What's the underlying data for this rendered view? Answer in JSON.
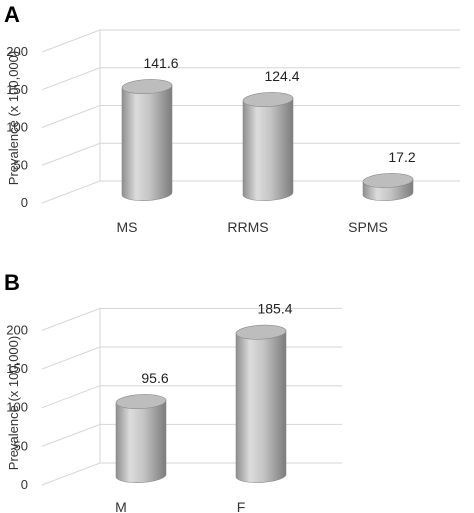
{
  "chart_data": [
    {
      "type": "bar",
      "panel": "A",
      "categories": [
        "MS",
        "RRMS",
        "SPMS"
      ],
      "values": [
        141.6,
        124.4,
        17.2
      ],
      "data_labels": [
        "141.6",
        "124.4",
        "17.2"
      ],
      "ylabel": "Prevalence (x 100,000)",
      "yticks": [
        "0",
        "50",
        "100",
        "150",
        "200"
      ],
      "ylim": [
        0,
        200
      ],
      "grid": true,
      "bar_style": "3d-cylinder",
      "bar_color": "#b5b5b5"
    },
    {
      "type": "bar",
      "panel": "B",
      "categories": [
        "M",
        "F"
      ],
      "values": [
        95.6,
        185.4
      ],
      "data_labels": [
        "95.6",
        "185.4"
      ],
      "ylabel": "Prevalence (x 100,000)",
      "yticks": [
        "0",
        "50",
        "100",
        "150",
        "200"
      ],
      "ylim": [
        0,
        200
      ],
      "grid": true,
      "bar_style": "3d-cylinder",
      "bar_color": "#b5b5b5"
    }
  ]
}
